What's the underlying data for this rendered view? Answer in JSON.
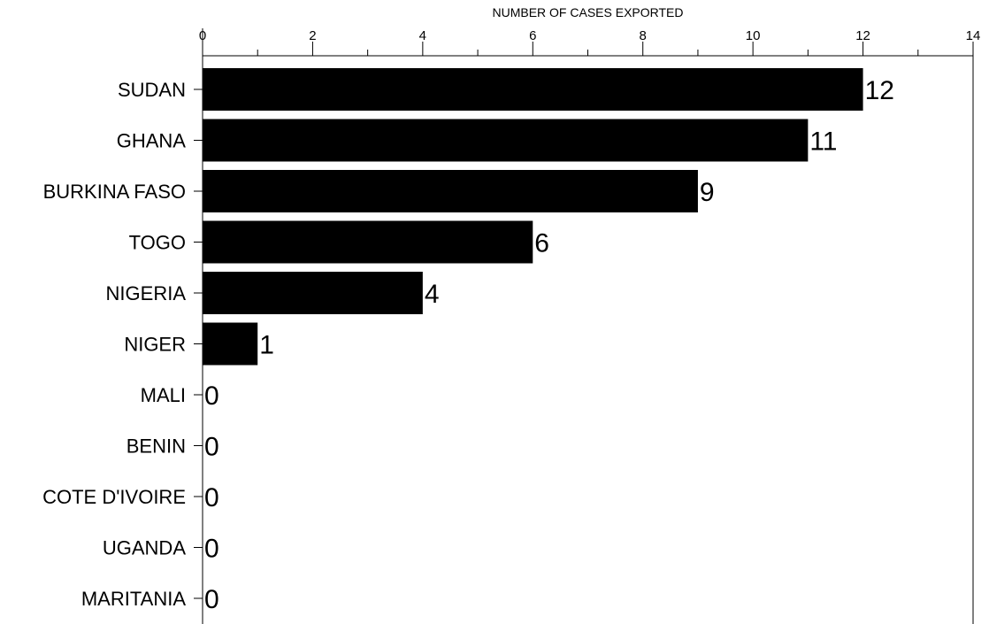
{
  "chart_data": {
    "type": "bar",
    "orientation": "horizontal",
    "title": "",
    "xlabel": "NUMBER OF CASES EXPORTED",
    "ylabel": "",
    "xlim": [
      0,
      14
    ],
    "x_ticks": [
      "0",
      "2",
      "4",
      "6",
      "8",
      "10",
      "12",
      "14"
    ],
    "x_axis_position": "top",
    "grid": false,
    "legend": "none",
    "bar_color": "#000000",
    "categories": [
      "SUDAN",
      "GHANA",
      "BURKINA FASO",
      "TOGO",
      "NIGERIA",
      "NIGER",
      "MALI",
      "BENIN",
      "COTE D'IVOIRE",
      "UGANDA",
      "MARITANIA"
    ],
    "values": [
      12,
      11,
      9,
      6,
      4,
      1,
      0,
      0,
      0,
      0,
      0
    ],
    "data_labels": [
      "12",
      "11",
      "9",
      "6",
      "4",
      "1",
      "0",
      "0",
      "0",
      "0",
      "0"
    ]
  }
}
